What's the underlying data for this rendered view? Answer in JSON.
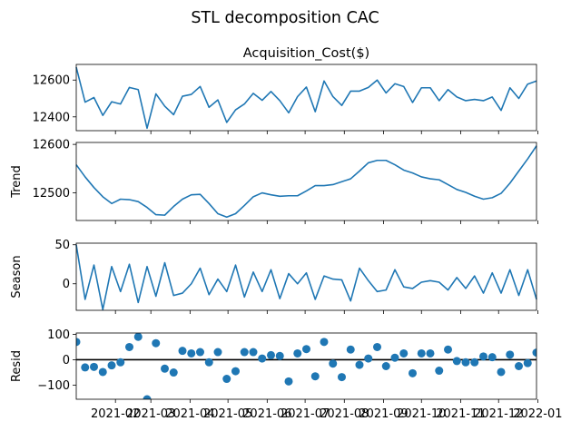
{
  "figure": {
    "suptitle": "STL decomposition CAC",
    "series_color": "#1f77b4",
    "zero_line_color": "#000000"
  },
  "chart_data": [
    {
      "type": "line",
      "title": "Acquisition_Cost($)",
      "ylabel": "",
      "ylim": [
        12325,
        12685
      ],
      "yticks": [
        12400,
        12600
      ],
      "ytick_labels": [
        "12400",
        "12600"
      ],
      "x": [
        "2021-01-01",
        "2021-01-08",
        "2021-01-15",
        "2021-01-22",
        "2021-01-29",
        "2021-02-05",
        "2021-02-12",
        "2021-02-19",
        "2021-02-26",
        "2021-03-05",
        "2021-03-12",
        "2021-03-19",
        "2021-03-26",
        "2021-04-02",
        "2021-04-09",
        "2021-04-16",
        "2021-04-23",
        "2021-04-30",
        "2021-05-07",
        "2021-05-14",
        "2021-05-21",
        "2021-05-28",
        "2021-06-04",
        "2021-06-11",
        "2021-06-18",
        "2021-06-25",
        "2021-07-02",
        "2021-07-09",
        "2021-07-16",
        "2021-07-23",
        "2021-07-30",
        "2021-08-06",
        "2021-08-13",
        "2021-08-20",
        "2021-08-27",
        "2021-09-03",
        "2021-09-10",
        "2021-09-17",
        "2021-09-24",
        "2021-10-01",
        "2021-10-08",
        "2021-10-15",
        "2021-10-22",
        "2021-10-29",
        "2021-11-05",
        "2021-11-12",
        "2021-11-19",
        "2021-11-26",
        "2021-12-03",
        "2021-12-10",
        "2021-12-17",
        "2021-12-24",
        "2021-12-31"
      ],
      "values": [
        12670,
        12480,
        12505,
        12408,
        12482,
        12470,
        12560,
        12548,
        12338,
        12525,
        12458,
        12412,
        12512,
        12522,
        12565,
        12452,
        12492,
        12370,
        12438,
        12470,
        12528,
        12490,
        12538,
        12488,
        12422,
        12510,
        12562,
        12428,
        12595,
        12510,
        12462,
        12540,
        12540,
        12560,
        12600,
        12530,
        12580,
        12565,
        12478,
        12558,
        12558,
        12488,
        12548,
        12508,
        12488,
        12495,
        12488,
        12508,
        12435,
        12558,
        12500,
        12578,
        12595
      ]
    },
    {
      "type": "line",
      "title": "",
      "ylabel": "Trend",
      "ylim": [
        12443,
        12604
      ],
      "yticks": [
        12500,
        12600
      ],
      "ytick_labels": [
        "12500",
        "12600"
      ],
      "values": [
        12558,
        12533,
        12511,
        12492,
        12478,
        12487,
        12486,
        12482,
        12470,
        12455,
        12454,
        12472,
        12487,
        12496,
        12497,
        12478,
        12457,
        12450,
        12457,
        12474,
        12492,
        12500,
        12496,
        12493,
        12494,
        12494,
        12504,
        12515,
        12515,
        12517,
        12523,
        12529,
        12545,
        12562,
        12567,
        12567,
        12558,
        12547,
        12541,
        12533,
        12529,
        12527,
        12517,
        12507,
        12501,
        12493,
        12487,
        12490,
        12499,
        12520,
        12545,
        12570,
        12597
      ]
    },
    {
      "type": "line",
      "title": "",
      "ylabel": "Season",
      "ylim": [
        -34,
        52
      ],
      "yticks": [
        0,
        50
      ],
      "ytick_labels": [
        "0",
        "50"
      ],
      "values": [
        50,
        -20,
        24,
        -33,
        22,
        -10,
        25,
        -24,
        22,
        -16,
        27,
        -15,
        -12,
        0,
        20,
        -14,
        6,
        -10,
        24,
        -17,
        15,
        -10,
        18,
        -19,
        13,
        0,
        14,
        -20,
        10,
        6,
        5,
        -22,
        20,
        4,
        -10,
        -8,
        18,
        -4,
        -6,
        2,
        4,
        2,
        -8,
        8,
        -6,
        10,
        -12,
        14,
        -12,
        18,
        -15,
        18,
        -20
      ]
    },
    {
      "type": "scatter",
      "title": "",
      "ylabel": "Resid",
      "ylim": [
        -155,
        105
      ],
      "yticks": [
        -100,
        0,
        100
      ],
      "ytick_labels": [
        "−100",
        "0",
        "100"
      ],
      "zero_line": true,
      "values": [
        70,
        -30,
        -28,
        -48,
        -22,
        -10,
        50,
        90,
        -155,
        65,
        -35,
        -50,
        35,
        25,
        30,
        -10,
        30,
        -75,
        -45,
        30,
        30,
        5,
        18,
        15,
        -85,
        25,
        42,
        -65,
        70,
        -15,
        -68,
        40,
        -20,
        5,
        50,
        -25,
        8,
        25,
        -53,
        25,
        25,
        -43,
        40,
        -5,
        -10,
        -10,
        13,
        10,
        -48,
        20,
        -25,
        -13,
        28
      ]
    }
  ],
  "x_axis": {
    "ticks": [
      "2021-02-01",
      "2021-03-01",
      "2021-04-01",
      "2021-05-01",
      "2021-06-01",
      "2021-07-01",
      "2021-08-01",
      "2021-09-01",
      "2021-10-01",
      "2021-11-01",
      "2021-12-01",
      "2022-01-01"
    ],
    "tick_labels": [
      "2021-02",
      "2021-03",
      "2021-04",
      "2021-05",
      "2021-06",
      "2021-07",
      "2021-08",
      "2021-09",
      "2021-10",
      "2021-11",
      "2021-12",
      "2022-01"
    ]
  }
}
